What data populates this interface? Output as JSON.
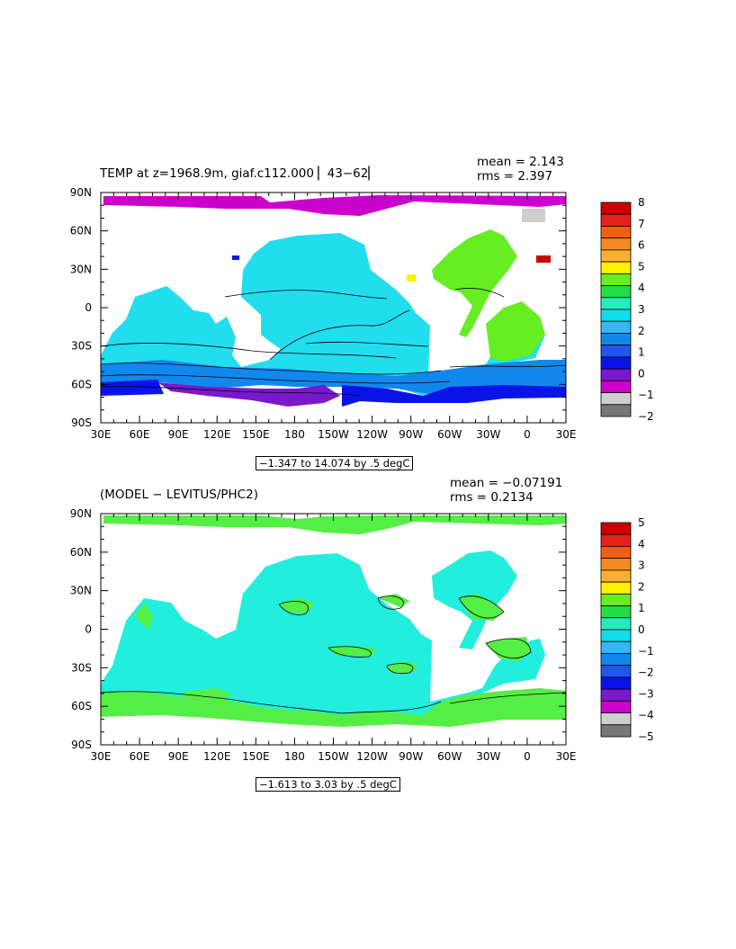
{
  "panels": [
    {
      "title": "TEMP at z=1968.9m, giaf.c112.000 ▏43−62▏",
      "mean": "mean = 2.143",
      "rms": "rms = 2.397",
      "range_note": "−1.347 to 14.074 by .5 degC",
      "lat_labels": [
        "90N",
        "60N",
        "30N",
        "0",
        "30S",
        "60S",
        "90S"
      ],
      "lon_labels": [
        "30E",
        "60E",
        "90E",
        "120E",
        "150E",
        "180",
        "150W",
        "120W",
        "90W",
        "60W",
        "30W",
        "0",
        "30E"
      ],
      "legend_labels": [
        "8",
        "7",
        "6",
        "5",
        "4",
        "3",
        "2",
        "1",
        "0",
        "−1",
        "−2"
      ],
      "legend_colors": [
        "#cc0000",
        "#e8201c",
        "#f06010",
        "#f58a20",
        "#fbb030",
        "#fff200",
        "#66ee22",
        "#22dd44",
        "#22eebb",
        "#11ddee",
        "#33b8f8",
        "#1188ee",
        "#2255ee",
        "#0a14e8",
        "#7a18cc",
        "#cc00cc",
        "#cfcfcf",
        "#777777"
      ],
      "ocean_color": "#22ddee",
      "arctic_color": "#cc00cc",
      "north_atlantic_color": "#66ee22",
      "southern_color": "#1188ee",
      "antarctic_color": "#7a18cc"
    },
    {
      "title": "(MODEL − LEVITUS/PHC2)",
      "mean": "mean = −0.07191",
      "rms": "rms = 0.2134",
      "range_note": "−1.613 to 3.03 by .5 degC",
      "lat_labels": [
        "90N",
        "60N",
        "30N",
        "0",
        "30S",
        "60S",
        "90S"
      ],
      "lon_labels": [
        "30E",
        "60E",
        "90E",
        "120E",
        "150E",
        "180",
        "150W",
        "120W",
        "90W",
        "60W",
        "30W",
        "0",
        "30E"
      ],
      "legend_labels": [
        "5",
        "4",
        "3",
        "2",
        "1",
        "0",
        "−1",
        "−2",
        "−3",
        "−4",
        "−5"
      ],
      "legend_colors": [
        "#cc0000",
        "#e8201c",
        "#f06010",
        "#f58a20",
        "#fbb030",
        "#fff200",
        "#66ee22",
        "#22dd44",
        "#22eebb",
        "#11ddee",
        "#33b8f8",
        "#1188ee",
        "#2255ee",
        "#0a14e8",
        "#7a18cc",
        "#cc00cc",
        "#cfcfcf",
        "#777777"
      ],
      "ocean_color": "#22eedd",
      "arctic_color": "#55ee44",
      "north_atlantic_color": "#22eedd",
      "southern_color": "#55ee44",
      "antarctic_color": "#55ee44"
    }
  ]
}
